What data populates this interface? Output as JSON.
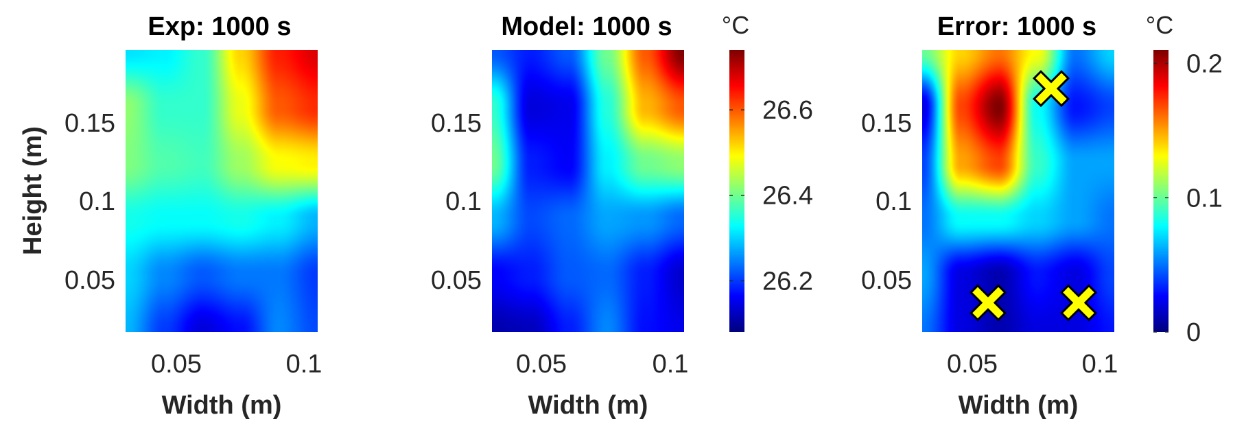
{
  "chart_data": [
    {
      "type": "heatmap",
      "title": "Exp: 1000 s",
      "xlabel": "Width (m)",
      "ylabel": "Height (m)",
      "xticks": [
        "0.05",
        "0.1"
      ],
      "yticks": [
        "0.05",
        "0.1",
        "0.15"
      ],
      "xlim": [
        0.032,
        0.102
      ],
      "ylim": [
        0.012,
        0.195
      ],
      "colormap": "jet",
      "clim": [
        26.08,
        26.74
      ],
      "x": [
        0.032,
        0.046,
        0.06,
        0.074,
        0.088,
        0.102
      ],
      "y": [
        0.012,
        0.049,
        0.085,
        0.122,
        0.158,
        0.195
      ],
      "z": [
        [
          26.28,
          26.2,
          26.14,
          26.17,
          26.25,
          26.21
        ],
        [
          26.3,
          26.25,
          26.22,
          26.24,
          26.24,
          26.2
        ],
        [
          26.34,
          26.33,
          26.33,
          26.34,
          26.32,
          26.28
        ],
        [
          26.41,
          26.38,
          26.37,
          26.43,
          26.49,
          26.5
        ],
        [
          26.42,
          26.36,
          26.36,
          26.48,
          26.6,
          26.63
        ],
        [
          26.31,
          26.32,
          26.36,
          26.52,
          26.64,
          26.68
        ]
      ]
    },
    {
      "type": "heatmap",
      "title": "Model: 1000 s",
      "xlabel": "Width (m)",
      "xticks": [
        "0.05",
        "0.1"
      ],
      "yticks": [
        "0.05",
        "0.1",
        "0.15"
      ],
      "xlim": [
        0.032,
        0.102
      ],
      "ylim": [
        0.012,
        0.195
      ],
      "colormap": "jet",
      "clim": [
        26.08,
        26.74
      ],
      "colorbar": {
        "unit": "°C",
        "ticks": [
          "26.2",
          "26.4",
          "26.6"
        ],
        "tick_values": [
          26.2,
          26.4,
          26.6
        ]
      },
      "x": [
        0.032,
        0.046,
        0.06,
        0.074,
        0.088,
        0.102
      ],
      "y": [
        0.012,
        0.049,
        0.085,
        0.122,
        0.158,
        0.195
      ],
      "z": [
        [
          26.11,
          26.12,
          26.18,
          26.25,
          26.17,
          26.15
        ],
        [
          26.16,
          26.18,
          26.22,
          26.23,
          26.18,
          26.13
        ],
        [
          26.28,
          26.21,
          26.23,
          26.27,
          26.26,
          26.23
        ],
        [
          26.4,
          26.18,
          26.16,
          26.32,
          26.4,
          26.42
        ],
        [
          26.36,
          26.14,
          26.15,
          26.35,
          26.54,
          26.6
        ],
        [
          26.22,
          26.18,
          26.22,
          26.4,
          26.6,
          26.74
        ]
      ]
    },
    {
      "type": "heatmap",
      "title": "Error: 1000 s",
      "xlabel": "Width (m)",
      "xticks": [
        "0.05",
        "0.1"
      ],
      "yticks": [
        "0.05",
        "0.1",
        "0.15"
      ],
      "xlim": [
        0.032,
        0.102
      ],
      "ylim": [
        0.012,
        0.195
      ],
      "colormap": "jet",
      "clim": [
        0,
        0.21
      ],
      "colorbar": {
        "unit": "°C",
        "ticks": [
          "0",
          "0.1",
          "0.2"
        ],
        "tick_values": [
          0,
          0.1,
          0.2
        ]
      },
      "x": [
        0.032,
        0.046,
        0.06,
        0.074,
        0.088,
        0.102
      ],
      "y": [
        0.012,
        0.049,
        0.085,
        0.122,
        0.158,
        0.195
      ],
      "z": [
        [
          0.05,
          0.02,
          0.01,
          0.02,
          0.02,
          0.03
        ],
        [
          0.06,
          0.02,
          0.01,
          0.03,
          0.02,
          0.04
        ],
        [
          0.05,
          0.08,
          0.08,
          0.07,
          0.06,
          0.05
        ],
        [
          0.04,
          0.15,
          0.17,
          0.09,
          0.06,
          0.06
        ],
        [
          0.02,
          0.17,
          0.21,
          0.08,
          0.03,
          0.04
        ],
        [
          0.1,
          0.14,
          0.16,
          0.13,
          0.05,
          0.07
        ]
      ],
      "markers": [
        {
          "x": 0.056,
          "y": 0.031
        },
        {
          "x": 0.089,
          "y": 0.031
        },
        {
          "x": 0.079,
          "y": 0.17
        }
      ],
      "marker_color": "#ffff00"
    }
  ]
}
